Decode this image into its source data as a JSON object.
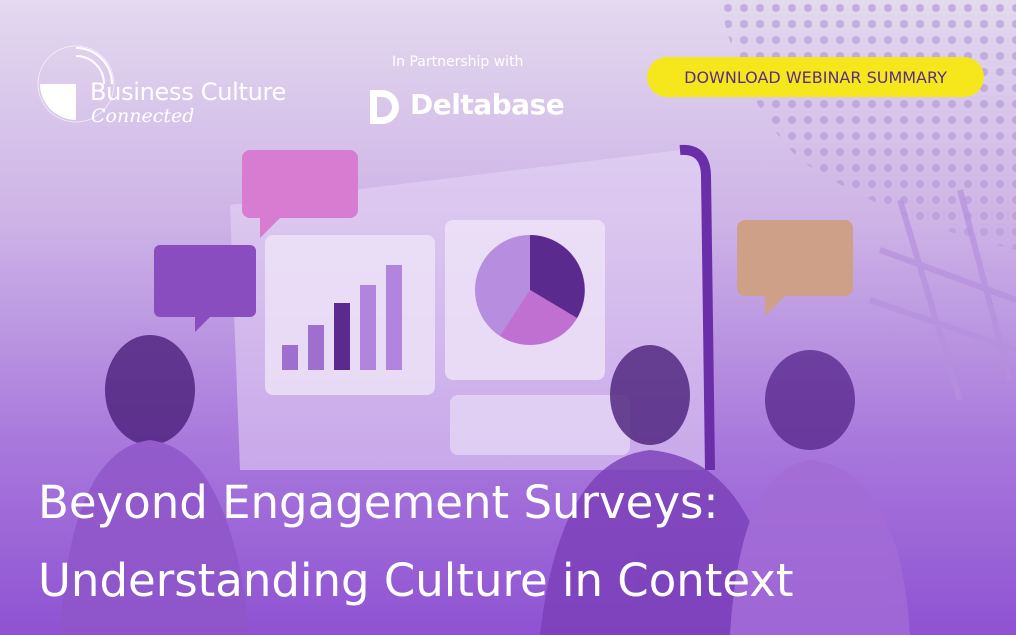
{
  "logo": {
    "name": "Business Culture",
    "tagline": "Connected"
  },
  "partner": {
    "label": "In Partnership with",
    "name": "Deltabase"
  },
  "button": {
    "label": "DOWNLOAD WEBINAR SUMMARY"
  },
  "title": {
    "line1": "Beyond Engagement Surveys:",
    "line2": "Understanding Culture in Context"
  }
}
